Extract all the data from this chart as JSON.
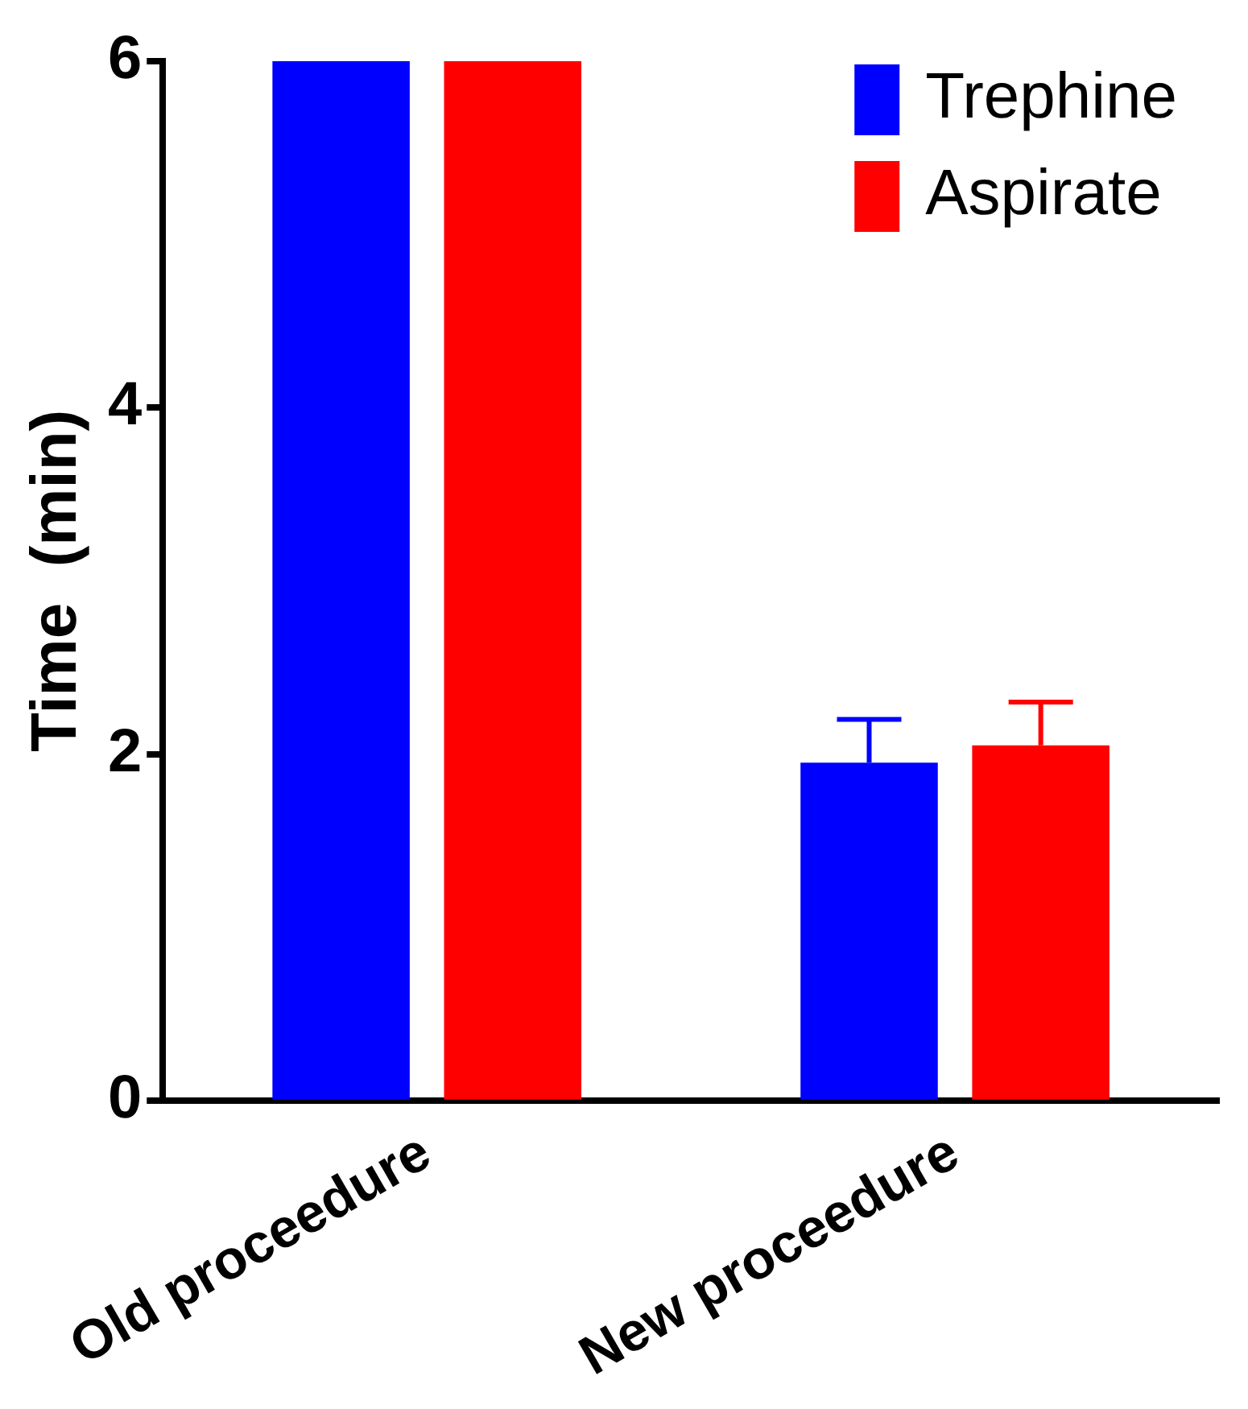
{
  "chart_data": {
    "type": "bar",
    "ylabel": "Time  (min)",
    "categories": [
      "Old proceedure",
      "New proceedure"
    ],
    "series": [
      {
        "name": "Trephine",
        "color": "#0000ff",
        "values": [
          6,
          1.95
        ],
        "errors": [
          null,
          [
            1.95,
            2.2
          ]
        ]
      },
      {
        "name": "Aspirate",
        "color": "#ff0000",
        "values": [
          6,
          2.05
        ],
        "errors": [
          null,
          [
            2.05,
            2.3
          ]
        ]
      }
    ],
    "ylim": [
      0,
      6
    ],
    "yticks": [
      0,
      2,
      4,
      6
    ],
    "grid": false,
    "legend": "top right"
  }
}
